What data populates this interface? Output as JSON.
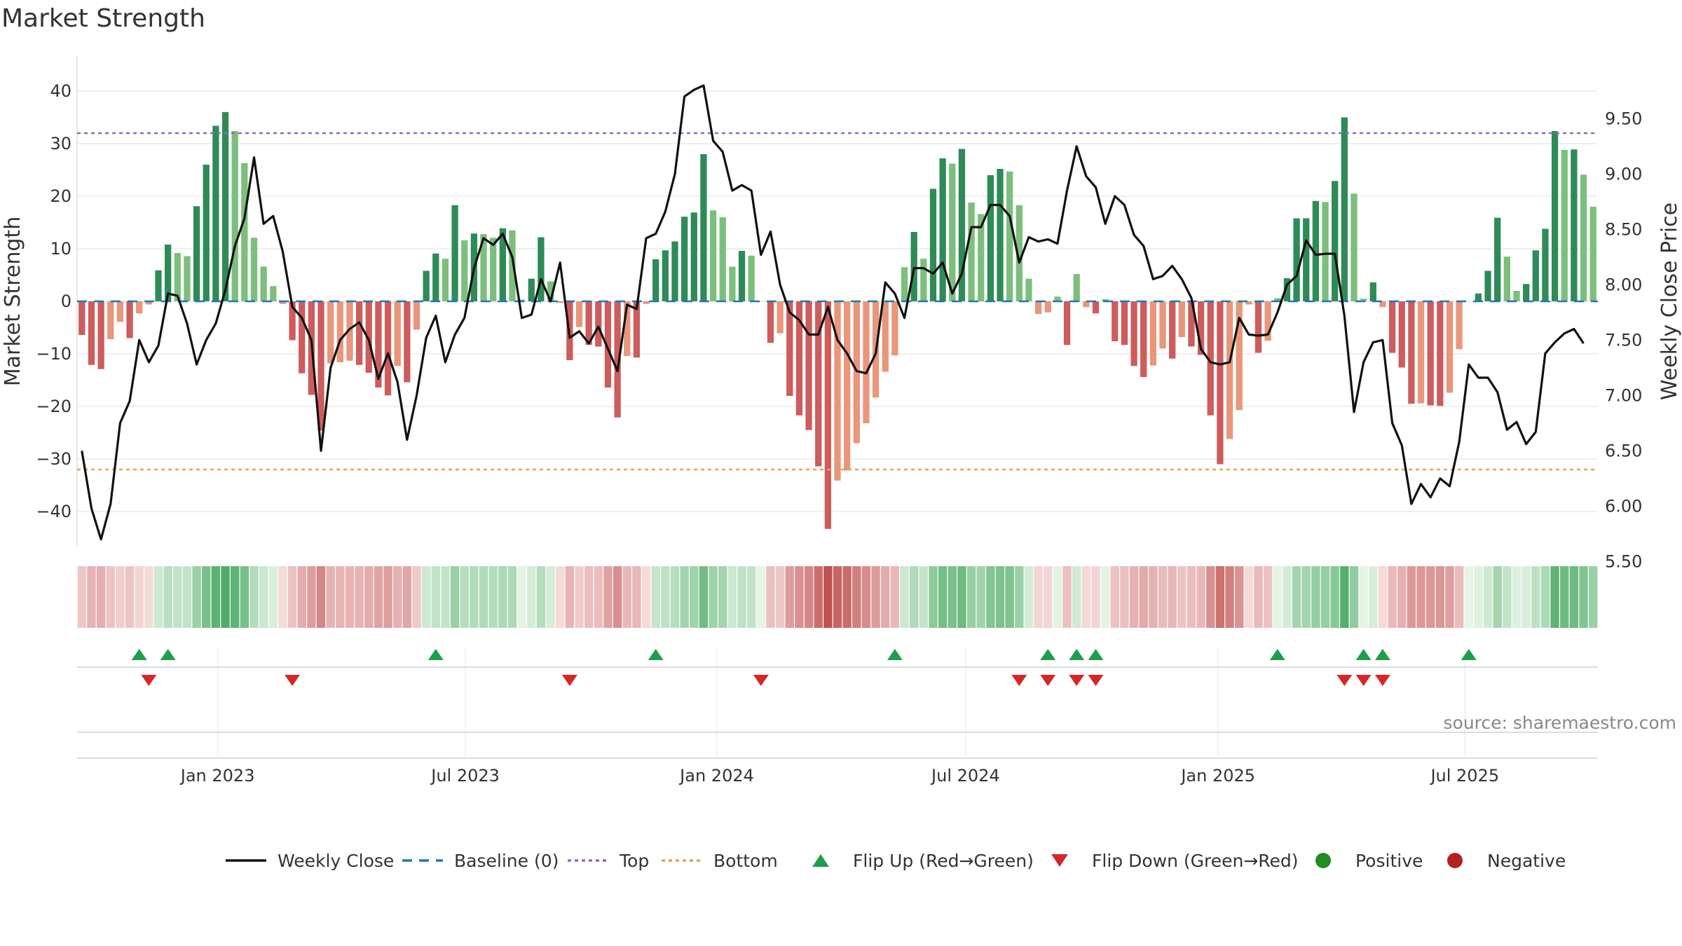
{
  "chart_data": {
    "type": "bar",
    "title": "Market Strength",
    "ylabel_left": "Market Strength",
    "ylabel_right": "Weekly Close Price",
    "ylim_left": [
      -47,
      48
    ],
    "ylim_right": [
      5.5,
      9.9
    ],
    "yticks_left": [
      40,
      30,
      20,
      10,
      0,
      -10,
      -20,
      -30,
      -40
    ],
    "yticks_right": [
      9.5,
      9.0,
      8.5,
      8.0,
      7.5,
      7.0,
      6.5,
      6.0,
      5.5
    ],
    "yticks_left_labels": [
      "40",
      "30",
      "20",
      "10",
      "0",
      "−10",
      "−20",
      "−30",
      "−40"
    ],
    "yticks_right_labels": [
      "9.50",
      "9.00",
      "8.50",
      "8.00",
      "7.50",
      "7.00",
      "6.50",
      "6.00",
      "5.50"
    ],
    "top_level": 32,
    "bottom_level": -32,
    "baseline": 0,
    "x_start": "2022-10-31",
    "x_ticks": [
      {
        "label": "Jan 2023",
        "week": 14.7
      },
      {
        "label": "Jul 2023",
        "week": 40.6
      },
      {
        "label": "Jan 2024",
        "week": 66.9
      },
      {
        "label": "Jul 2024",
        "week": 92.9
      },
      {
        "label": "Jan 2025",
        "week": 119.3
      },
      {
        "label": "Jul 2025",
        "week": 145.1
      }
    ],
    "strength": [
      -6.4,
      -12.1,
      -12.9,
      -7.2,
      -3.9,
      -7.0,
      -2.3,
      -0.6,
      5.9,
      10.8,
      9.2,
      8.6,
      18.1,
      26.0,
      33.4,
      36.0,
      32.4,
      26.3,
      12.1,
      6.6,
      2.9,
      -0.5,
      -7.4,
      -13.7,
      -17.8,
      -24.6,
      -11.8,
      -11.6,
      -11.3,
      -12.1,
      -13.6,
      -16.4,
      -17.9,
      -12.3,
      -15.4,
      -5.4,
      5.8,
      9.1,
      8.1,
      18.3,
      11.6,
      12.9,
      12.8,
      12.1,
      13.9,
      13.5,
      0.3,
      4.3,
      12.2,
      3.8,
      -0.3,
      -11.2,
      -4.9,
      -8.3,
      -8.6,
      -16.4,
      -22.1,
      -10.4,
      -10.7,
      -0.5,
      8.0,
      9.7,
      11.4,
      16.1,
      16.9,
      28.0,
      17.3,
      16.0,
      6.6,
      9.6,
      8.7,
      0.0,
      -7.9,
      -6.1,
      -18.0,
      -21.7,
      -24.5,
      -31.4,
      -43.3,
      -34.1,
      -32.2,
      -27.0,
      -23.2,
      -18.3,
      -13.4,
      -10.3,
      6.5,
      13.2,
      8.1,
      21.4,
      27.2,
      26.2,
      29.0,
      18.8,
      16.6,
      24.0,
      25.2,
      24.7,
      18.3,
      4.3,
      -2.4,
      -2.1,
      0.9,
      -8.3,
      5.2,
      -1.1,
      -2.3,
      0.4,
      -7.6,
      -8.3,
      -12.3,
      -14.4,
      -12.2,
      -9.0,
      -10.9,
      -6.8,
      -8.6,
      -10.2,
      -21.7,
      -31.0,
      -26.2,
      -20.7,
      -0.6,
      -9.8,
      -7.5,
      0.6,
      4.4,
      15.8,
      15.8,
      19.1,
      18.9,
      22.9,
      35.0,
      20.5,
      0.5,
      3.6,
      -1.1,
      -9.8,
      -12.6,
      -19.5,
      -19.4,
      -19.8,
      -19.9,
      -17.4,
      -9.1,
      0.0,
      1.5,
      5.8,
      15.9,
      8.5,
      2.0,
      3.3,
      9.7,
      13.8,
      32.4,
      28.8,
      28.9,
      24.1,
      18.0
    ],
    "close": [
      6.5,
      5.98,
      5.7,
      6.02,
      6.75,
      6.95,
      7.5,
      7.3,
      7.45,
      7.92,
      7.9,
      7.65,
      7.28,
      7.5,
      7.65,
      7.95,
      8.35,
      8.6,
      9.15,
      8.55,
      8.62,
      8.3,
      7.8,
      7.7,
      7.5,
      6.5,
      7.25,
      7.5,
      7.6,
      7.66,
      7.5,
      7.15,
      7.38,
      7.12,
      6.6,
      7.0,
      7.52,
      7.72,
      7.3,
      7.55,
      7.7,
      8.15,
      8.42,
      8.36,
      8.46,
      8.25,
      7.7,
      7.73,
      8.05,
      7.85,
      8.2,
      7.52,
      7.58,
      7.47,
      7.62,
      7.42,
      7.22,
      7.82,
      7.78,
      8.42,
      8.46,
      8.66,
      9.0,
      9.7,
      9.76,
      9.8,
      9.3,
      9.2,
      8.85,
      8.9,
      8.85,
      8.27,
      8.48,
      8.0,
      7.75,
      7.68,
      7.55,
      7.55,
      7.8,
      7.5,
      7.38,
      7.22,
      7.2,
      7.38,
      8.02,
      7.92,
      7.7,
      8.15,
      8.15,
      8.1,
      8.2,
      7.92,
      8.1,
      8.52,
      8.52,
      8.72,
      8.72,
      8.62,
      8.2,
      8.43,
      8.39,
      8.41,
      8.37,
      8.85,
      9.25,
      8.98,
      8.88,
      8.55,
      8.8,
      8.72,
      8.45,
      8.35,
      8.05,
      8.08,
      8.17,
      8.05,
      7.88,
      7.42,
      7.3,
      7.28,
      7.3,
      7.7,
      7.55,
      7.54,
      7.55,
      7.75,
      8.0,
      8.08,
      8.4,
      8.27,
      8.28,
      8.28,
      7.72,
      6.85,
      7.3,
      7.48,
      7.5,
      6.75,
      6.55,
      6.02,
      6.2,
      6.08,
      6.25,
      6.18,
      6.58,
      7.28,
      7.16,
      7.16,
      7.03,
      6.69,
      6.76,
      6.56,
      6.67,
      7.38,
      7.48,
      7.56,
      7.6,
      7.47
    ],
    "flip_up": [
      6,
      9,
      37,
      60,
      85,
      101,
      104,
      106,
      125,
      134,
      136,
      145
    ],
    "flip_down": [
      7,
      22,
      51,
      71,
      98,
      101,
      104,
      106,
      132,
      134,
      136
    ],
    "source": "source: sharemaestro.com",
    "legend": [
      "Weekly Close",
      "Baseline (0)",
      "Top",
      "Bottom",
      "Flip Up (Red→Green)",
      "Flip Down (Green→Red)",
      "Positive",
      "Negative"
    ],
    "legend_placement": "bottom-center",
    "colors": {
      "pos_dark": "#2e8b57",
      "pos_light": "#7cbf7c",
      "neg_dark": "#cd5c5c",
      "neg_light": "#e9967a",
      "close": "#111111",
      "baseline": "#1f77b4",
      "top": "#9467bd",
      "bottom": "#e6a15c",
      "flip_up": "#1e9e4a",
      "flip_down": "#d62728",
      "positive_dot": "#228b22",
      "negative_dot": "#b22222"
    },
    "grid": true
  }
}
